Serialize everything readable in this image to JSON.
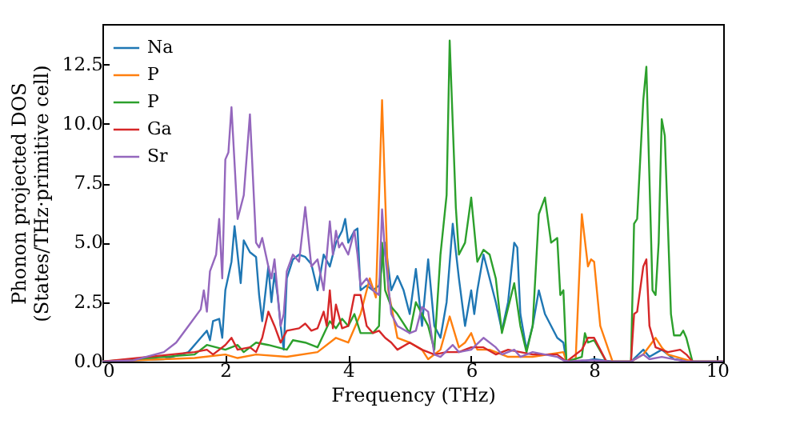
{
  "chart_data": {
    "type": "line",
    "xlabel": "Frequency (THz)",
    "ylabel": "Phonon projected DOS\n(States/THz·primitive cell)",
    "xlim": [
      0,
      10.1
    ],
    "ylim": [
      0,
      14.2
    ],
    "xticks": [
      0,
      2,
      4,
      6,
      8,
      10
    ],
    "yticks": [
      {
        "value": 0,
        "label": "0.0"
      },
      {
        "value": 2.5,
        "label": "2.5"
      },
      {
        "value": 5,
        "label": "5.0"
      },
      {
        "value": 7.5,
        "label": "7.5"
      },
      {
        "value": 10,
        "label": "10.0"
      },
      {
        "value": 12.5,
        "label": "12.5"
      }
    ],
    "legend": "top left",
    "grid": false,
    "line_style": "solid",
    "series": [
      {
        "name": "Na",
        "color": "#1f77b4",
        "x": [
          0,
          1.0,
          1.4,
          1.6,
          1.7,
          1.75,
          1.8,
          1.9,
          1.95,
          2.0,
          2.1,
          2.15,
          2.25,
          2.3,
          2.4,
          2.5,
          2.55,
          2.6,
          2.7,
          2.75,
          2.8,
          2.85,
          2.9,
          2.95,
          3.0,
          3.1,
          3.2,
          3.3,
          3.4,
          3.5,
          3.6,
          3.7,
          3.8,
          3.9,
          3.95,
          4.0,
          4.1,
          4.15,
          4.2,
          4.3,
          4.4,
          4.5,
          4.6,
          4.7,
          4.8,
          4.9,
          5.0,
          5.1,
          5.2,
          5.3,
          5.4,
          5.5,
          5.6,
          5.7,
          5.8,
          5.9,
          6.0,
          6.05,
          6.1,
          6.2,
          6.3,
          6.4,
          6.5,
          6.6,
          6.7,
          6.75,
          6.8,
          6.9,
          7.0,
          7.1,
          7.2,
          7.4,
          7.5,
          7.55,
          7.8,
          8.0,
          8.3,
          8.6,
          8.8,
          8.9,
          9.1,
          9.3,
          9.6,
          10.1
        ],
        "values": [
          0,
          0.1,
          0.4,
          1.0,
          1.3,
          0.9,
          1.7,
          1.8,
          1.0,
          3.0,
          4.2,
          5.7,
          3.3,
          5.1,
          4.6,
          4.4,
          2.8,
          1.7,
          4.0,
          2.5,
          3.7,
          2.8,
          1.5,
          0.5,
          3.5,
          4.3,
          4.5,
          4.4,
          4.1,
          3.0,
          4.5,
          4.0,
          5.0,
          5.5,
          6.0,
          5.0,
          5.5,
          5.6,
          3.0,
          3.2,
          3.0,
          3.2,
          5.0,
          3.0,
          3.6,
          3.0,
          2.0,
          3.9,
          1.5,
          4.3,
          1.5,
          1.0,
          2.5,
          5.8,
          3.5,
          1.5,
          3.0,
          2.0,
          3.0,
          4.5,
          3.5,
          2.5,
          1.3,
          2.5,
          5.0,
          4.8,
          2.0,
          0.5,
          1.5,
          3.0,
          2.0,
          1.0,
          0.8,
          0,
          0,
          0.1,
          0,
          0,
          0.5,
          0.2,
          0.5,
          0.1,
          0,
          0
        ]
      },
      {
        "name": "P",
        "color": "#ff7f0e",
        "x": [
          0,
          1.5,
          2.0,
          2.2,
          2.5,
          3.0,
          3.5,
          3.8,
          4.0,
          4.2,
          4.35,
          4.45,
          4.55,
          4.65,
          4.8,
          5.0,
          5.2,
          5.3,
          5.5,
          5.65,
          5.8,
          5.9,
          6.0,
          6.1,
          6.3,
          6.6,
          7.0,
          7.5,
          7.55,
          7.7,
          7.8,
          7.9,
          7.95,
          8.0,
          8.1,
          8.3,
          8.6,
          8.8,
          9.0,
          9.1,
          9.2,
          9.6,
          10.1
        ],
        "values": [
          0,
          0.15,
          0.3,
          0.15,
          0.3,
          0.2,
          0.4,
          1.0,
          0.8,
          2.0,
          3.5,
          2.7,
          11.0,
          3.0,
          1.0,
          0.8,
          0.5,
          0.1,
          0.5,
          1.9,
          0.6,
          0.8,
          1.2,
          0.5,
          0.5,
          0.2,
          0.2,
          0.4,
          0,
          0.1,
          6.2,
          4.0,
          4.3,
          4.2,
          1.5,
          0,
          0,
          0.3,
          1.0,
          0.6,
          0.3,
          0,
          0
        ]
      },
      {
        "name": "P",
        "color": "#2ca02c",
        "x": [
          0,
          1.5,
          1.7,
          2.0,
          2.2,
          2.3,
          2.5,
          2.7,
          3.0,
          3.1,
          3.3,
          3.5,
          3.7,
          3.8,
          3.9,
          4.0,
          4.1,
          4.2,
          4.4,
          4.5,
          4.55,
          4.6,
          4.7,
          4.8,
          5.0,
          5.1,
          5.3,
          5.4,
          5.5,
          5.6,
          5.65,
          5.75,
          5.8,
          5.9,
          6.0,
          6.1,
          6.2,
          6.3,
          6.4,
          6.5,
          6.7,
          6.8,
          6.9,
          7.0,
          7.1,
          7.2,
          7.3,
          7.4,
          7.45,
          7.5,
          7.55,
          7.8,
          7.85,
          7.9,
          8.0,
          8.2,
          8.6,
          8.65,
          8.7,
          8.8,
          8.85,
          8.95,
          9.0,
          9.05,
          9.1,
          9.15,
          9.25,
          9.3,
          9.4,
          9.45,
          9.5,
          9.6,
          10.1
        ],
        "values": [
          0,
          0.3,
          0.7,
          0.5,
          0.7,
          0.4,
          0.8,
          0.7,
          0.5,
          0.9,
          0.8,
          0.6,
          1.7,
          1.4,
          1.8,
          1.5,
          2.0,
          1.2,
          1.2,
          1.5,
          5.0,
          3.0,
          2.3,
          2.0,
          1.2,
          2.5,
          1.5,
          0.5,
          4.5,
          7.0,
          13.5,
          6.5,
          4.5,
          5.0,
          6.9,
          4.2,
          4.7,
          4.5,
          3.5,
          1.2,
          3.3,
          1.5,
          0.4,
          1.5,
          6.2,
          6.9,
          5.0,
          5.2,
          2.8,
          3.0,
          0,
          0.2,
          1.2,
          0.8,
          0.9,
          0,
          0,
          5.8,
          6.0,
          11.0,
          12.4,
          3.0,
          2.8,
          5.0,
          10.2,
          9.5,
          2.0,
          1.1,
          1.1,
          1.3,
          1.0,
          0,
          0
        ]
      },
      {
        "name": "Ga",
        "color": "#d62728",
        "x": [
          0,
          1.5,
          1.7,
          1.8,
          2.0,
          2.1,
          2.2,
          2.4,
          2.5,
          2.6,
          2.7,
          2.8,
          2.9,
          3.0,
          3.2,
          3.3,
          3.4,
          3.5,
          3.6,
          3.65,
          3.7,
          3.75,
          3.8,
          3.9,
          4.0,
          4.1,
          4.2,
          4.3,
          4.4,
          4.5,
          4.6,
          4.7,
          4.8,
          5.0,
          5.2,
          5.4,
          5.6,
          5.8,
          6.0,
          6.2,
          6.4,
          6.6,
          7.0,
          7.4,
          7.55,
          7.8,
          7.9,
          8.0,
          8.1,
          8.2,
          8.6,
          8.65,
          8.7,
          8.8,
          8.85,
          8.9,
          9.0,
          9.2,
          9.4,
          9.5,
          9.6,
          10.1
        ],
        "values": [
          0,
          0.4,
          0.5,
          0.3,
          0.7,
          1.0,
          0.5,
          0.6,
          0.4,
          1.0,
          2.1,
          1.5,
          0.8,
          1.3,
          1.4,
          1.6,
          1.3,
          1.4,
          2.1,
          1.5,
          3.0,
          1.4,
          2.4,
          1.4,
          1.5,
          2.8,
          2.8,
          1.5,
          1.2,
          1.3,
          1.0,
          0.8,
          0.5,
          0.8,
          0.5,
          0.3,
          0.4,
          0.4,
          0.6,
          0.6,
          0.3,
          0.5,
          0.3,
          0.3,
          0,
          0.5,
          1.0,
          1.0,
          0.5,
          0,
          0,
          2.0,
          2.1,
          4.0,
          4.3,
          1.5,
          0.6,
          0.4,
          0.5,
          0.3,
          0,
          0
        ]
      },
      {
        "name": "Sr",
        "color": "#9467bd",
        "x": [
          0,
          0.5,
          1.0,
          1.2,
          1.4,
          1.6,
          1.65,
          1.7,
          1.75,
          1.85,
          1.9,
          1.95,
          2.0,
          2.05,
          2.1,
          2.2,
          2.3,
          2.4,
          2.5,
          2.55,
          2.6,
          2.7,
          2.75,
          2.8,
          2.9,
          2.95,
          3.0,
          3.1,
          3.2,
          3.3,
          3.4,
          3.5,
          3.6,
          3.7,
          3.75,
          3.8,
          3.85,
          3.9,
          4.0,
          4.1,
          4.15,
          4.2,
          4.3,
          4.4,
          4.5,
          4.55,
          4.6,
          4.7,
          4.8,
          5.0,
          5.1,
          5.2,
          5.3,
          5.4,
          5.5,
          5.7,
          5.8,
          6.0,
          6.2,
          6.4,
          6.5,
          6.7,
          6.8,
          7.0,
          7.2,
          7.4,
          7.5,
          7.6,
          7.8,
          8.0,
          8.3,
          8.6,
          8.8,
          8.9,
          9.1,
          9.5,
          10.1
        ],
        "values": [
          0,
          0.05,
          0.4,
          0.8,
          1.5,
          2.2,
          3.0,
          2.1,
          3.8,
          4.5,
          6.0,
          3.5,
          8.5,
          8.8,
          10.7,
          6.0,
          7.0,
          10.4,
          5.0,
          4.8,
          5.2,
          4.0,
          3.5,
          4.3,
          1.5,
          2.0,
          3.8,
          4.5,
          4.2,
          6.5,
          4.0,
          4.3,
          3.0,
          5.9,
          4.5,
          5.5,
          4.8,
          5.0,
          4.5,
          5.5,
          4.5,
          3.2,
          3.5,
          3.0,
          2.8,
          6.4,
          4.5,
          2.0,
          1.5,
          1.2,
          1.3,
          2.3,
          2.1,
          0.3,
          0.2,
          0.7,
          0.4,
          0.5,
          1.0,
          0.6,
          0.3,
          0.5,
          0.2,
          0.4,
          0.3,
          0.2,
          0.05,
          0,
          0.05,
          0.05,
          0,
          0,
          0.3,
          0.1,
          0.2,
          0,
          0
        ]
      }
    ]
  }
}
